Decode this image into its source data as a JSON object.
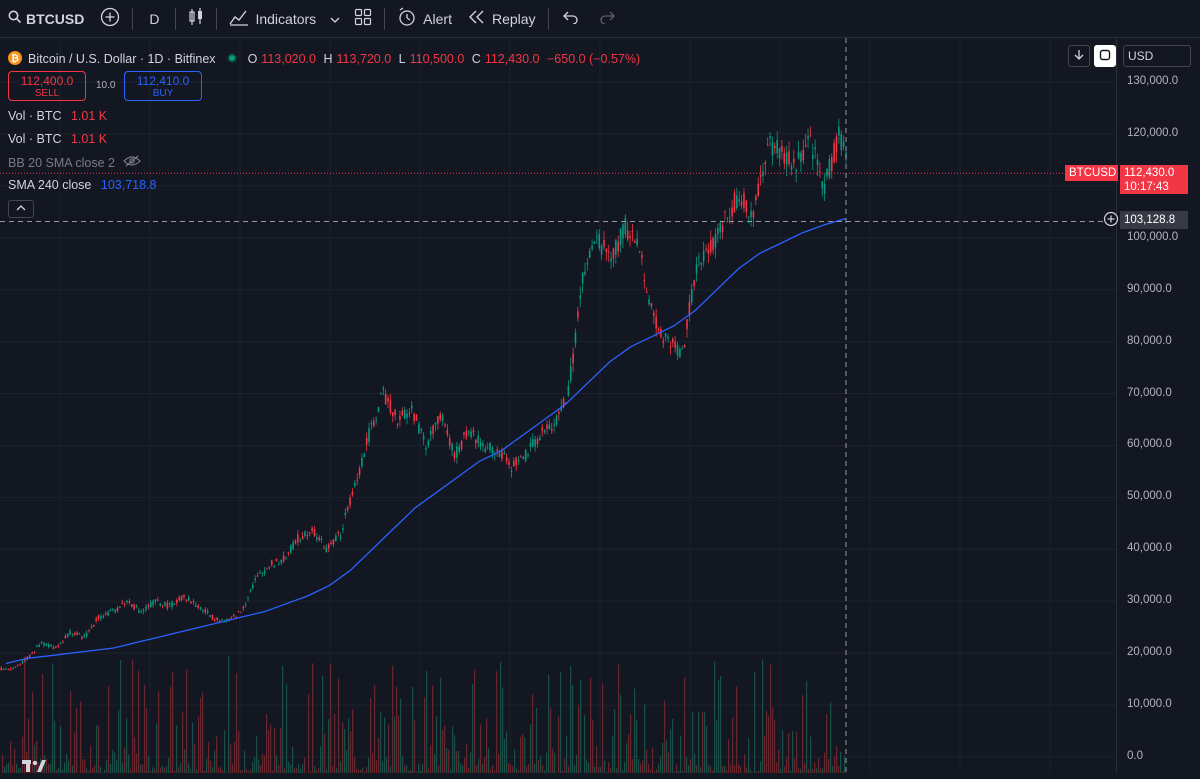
{
  "toolbar": {
    "symbol": "BTCUSD",
    "interval": "D",
    "indicators_label": "Indicators",
    "alert_label": "Alert",
    "replay_label": "Replay"
  },
  "legend": {
    "title": "Bitcoin / U.S. Dollar · 1D · Bitfinex",
    "open_label": "O",
    "open": "113,020.0",
    "high_label": "H",
    "high": "113,720.0",
    "low_label": "L",
    "low": "110,500.0",
    "close_label": "C",
    "close": "112,430.0",
    "change": "−650.0 (−0.57%)"
  },
  "trade": {
    "sell_price": "112,400.0",
    "sell_label": "SELL",
    "spread": "10.0",
    "buy_price": "112,410.0",
    "buy_label": "BUY"
  },
  "indicators": {
    "vol1_label": "Vol · BTC",
    "vol1_value": "1.01 K",
    "vol2_label": "Vol · BTC",
    "vol2_value": "1.01 K",
    "bb_label": "BB 20 SMA close 2",
    "sma_label": "SMA 240 close",
    "sma_value": "103,718.8"
  },
  "currency": "USD",
  "price_axis": [
    "130,000.0",
    "120,000.0",
    "100,000.0",
    "90,000.0",
    "80,000.0",
    "70,000.0",
    "60,000.0",
    "50,000.0",
    "40,000.0",
    "30,000.0",
    "20,000.0",
    "10,000.0",
    "0.0"
  ],
  "last_price": {
    "symbol": "BTCUSD",
    "price": "112,430.0",
    "countdown": "10:17:43"
  },
  "crosshair_price": "103,128.8",
  "colors": {
    "bg": "#131722",
    "up": "#089981",
    "down": "#f23645",
    "sma": "#2962ff",
    "grid": "#1e222d"
  },
  "chart_data": {
    "type": "line",
    "series": [
      {
        "values": [
          17000,
          19000,
          22000,
          21000,
          24000,
          23000,
          27000,
          28000,
          30000,
          28000,
          30000,
          29000,
          31000,
          29000,
          27000,
          26000,
          28000,
          34000,
          37000,
          38000,
          42000,
          44000,
          40000,
          43000,
          52000,
          62000,
          70000,
          65000,
          67000,
          60000,
          66000,
          58000,
          63000,
          60000,
          59000,
          56000,
          58000,
          62000,
          64000,
          70000,
          92000,
          100000,
          96000,
          102000,
          98000,
          84000,
          80000,
          78000,
          94000,
          98000,
          104000,
          108000,
          104000,
          118000,
          116000,
          114000,
          118000,
          110000,
          120000,
          112430
        ]
      },
      {
        "values": [
          18000,
          19000,
          19500,
          20000,
          20500,
          21000,
          22000,
          23000,
          24000,
          25000,
          26000,
          27000,
          28000,
          29500,
          31000,
          33000,
          36000,
          40000,
          44000,
          48000,
          51000,
          54000,
          57000,
          59000,
          62000,
          65000,
          68000,
          72000,
          76000,
          79000,
          81000,
          83000,
          86000,
          90000,
          94000,
          97000,
          99000,
          101000,
          102500,
          103718.8
        ]
      }
    ],
    "ylim": [
      0,
      135000
    ]
  }
}
